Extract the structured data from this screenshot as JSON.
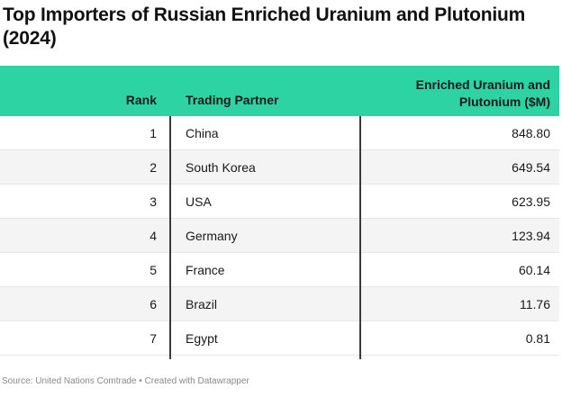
{
  "chart_data": {
    "type": "table",
    "title": "Top Importers of Russian Enriched Uranium and Plutonium (2024)",
    "columns": [
      "Rank",
      "Trading Partner",
      "Enriched Uranium and Plutonium ($M)"
    ],
    "rows": [
      {
        "rank": "1",
        "partner": "China",
        "value": "848.80"
      },
      {
        "rank": "2",
        "partner": "South Korea",
        "value": "649.54"
      },
      {
        "rank": "3",
        "partner": "USA",
        "value": "623.95"
      },
      {
        "rank": "4",
        "partner": "Germany",
        "value": "123.94"
      },
      {
        "rank": "5",
        "partner": "France",
        "value": "60.14"
      },
      {
        "rank": "6",
        "partner": "Brazil",
        "value": "11.76"
      },
      {
        "rank": "7",
        "partner": "Egypt",
        "value": "0.81"
      }
    ],
    "header_color": "#2ed3a4",
    "stripe_color": "#f4f4f4"
  },
  "footer": {
    "source": "Source: United Nations Comtrade • Created with Datawrapper"
  }
}
